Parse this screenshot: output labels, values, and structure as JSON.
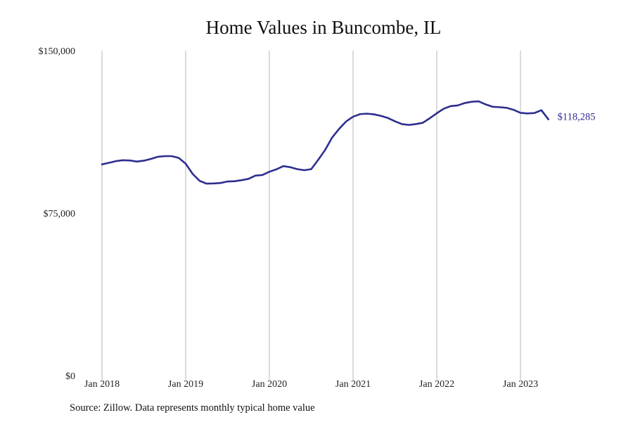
{
  "chart_data": {
    "type": "line",
    "title": "Home Values in Buncombe, IL",
    "xlabel": "",
    "ylabel": "",
    "ylim": [
      0,
      150000
    ],
    "y_ticks": [
      {
        "value": 0,
        "label": "$0"
      },
      {
        "value": 75000,
        "label": "$75,000"
      },
      {
        "value": 150000,
        "label": "$150,000"
      }
    ],
    "x_ticks": [
      {
        "value": "2018-01",
        "label": "Jan 2018"
      },
      {
        "value": "2019-01",
        "label": "Jan 2019"
      },
      {
        "value": "2020-01",
        "label": "Jan 2020"
      },
      {
        "value": "2021-01",
        "label": "Jan 2021"
      },
      {
        "value": "2022-01",
        "label": "Jan 2022"
      },
      {
        "value": "2023-01",
        "label": "Jan 2023"
      }
    ],
    "grid": {
      "vertical": true,
      "horizontal": false
    },
    "line_color": "#2e2e8f",
    "end_label": "$118,285",
    "series": [
      {
        "x": [
          "2018-01",
          "2018-02",
          "2018-03",
          "2018-04",
          "2018-05",
          "2018-06",
          "2018-07",
          "2018-08",
          "2018-09",
          "2018-10",
          "2018-11",
          "2018-12",
          "2019-01",
          "2019-02",
          "2019-03",
          "2019-04",
          "2019-05",
          "2019-06",
          "2019-07",
          "2019-08",
          "2019-09",
          "2019-10",
          "2019-11",
          "2019-12",
          "2020-01",
          "2020-02",
          "2020-03",
          "2020-04",
          "2020-05",
          "2020-06",
          "2020-07",
          "2020-08",
          "2020-09",
          "2020-10",
          "2020-11",
          "2020-12",
          "2021-01",
          "2021-02",
          "2021-03",
          "2021-04",
          "2021-05",
          "2021-06",
          "2021-07",
          "2021-08",
          "2021-09",
          "2021-10",
          "2021-11",
          "2021-12",
          "2022-01",
          "2022-02",
          "2022-03",
          "2022-04",
          "2022-05",
          "2022-06",
          "2022-07",
          "2022-08",
          "2022-09",
          "2022-10",
          "2022-11",
          "2022-12",
          "2023-01",
          "2023-02",
          "2023-03",
          "2023-04",
          "2023-05"
        ],
        "values": [
          97500,
          98200,
          99000,
          99400,
          99300,
          98800,
          99200,
          100000,
          101000,
          101300,
          101300,
          100500,
          97800,
          93100,
          89900,
          88600,
          88700,
          88900,
          89600,
          89700,
          90200,
          90800,
          92300,
          92600,
          94100,
          95200,
          96700,
          96200,
          95300,
          94800,
          95300,
          99600,
          104200,
          109900,
          113900,
          117300,
          119500,
          120700,
          120900,
          120600,
          119900,
          118900,
          117400,
          116100,
          115700,
          116100,
          116700,
          118800,
          121100,
          123200,
          124400,
          124700,
          125800,
          126400,
          126600,
          125200,
          124100,
          123900,
          123600,
          122700,
          121300,
          121000,
          121200,
          122500,
          118285
        ]
      }
    ]
  },
  "footer": {
    "source": "Source: Zillow. Data represents monthly typical home value"
  }
}
